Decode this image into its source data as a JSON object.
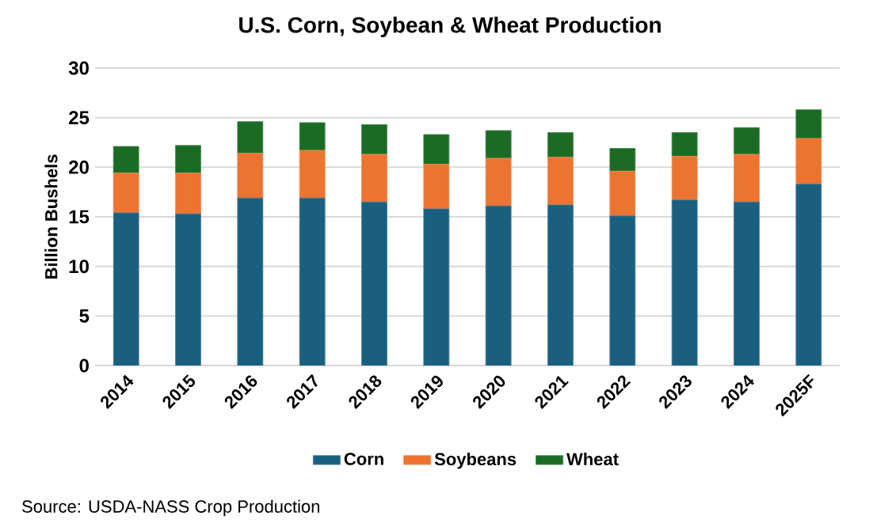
{
  "chart_data": {
    "type": "bar",
    "title": "U.S. Corn, Soybean & Wheat Production",
    "ylabel": "Billion Bushels",
    "categories": [
      "2014",
      "2015",
      "2016",
      "2017",
      "2018",
      "2019",
      "2020",
      "2021",
      "2022",
      "2023",
      "2024",
      "2025F"
    ],
    "series": [
      {
        "name": "Corn",
        "color": "#1a5f7f",
        "values": [
          15.4,
          15.3,
          16.9,
          16.9,
          16.5,
          15.8,
          16.1,
          16.2,
          15.1,
          16.7,
          16.5,
          18.3
        ]
      },
      {
        "name": "Soybeans",
        "color": "#ed7330",
        "values": [
          4.0,
          4.1,
          4.5,
          4.8,
          4.8,
          4.5,
          4.8,
          4.8,
          4.5,
          4.4,
          4.8,
          4.6
        ]
      },
      {
        "name": "Wheat",
        "color": "#1b6b24",
        "values": [
          2.7,
          2.8,
          3.2,
          2.8,
          3.0,
          3.0,
          2.8,
          2.5,
          2.3,
          2.4,
          2.7,
          2.9
        ]
      }
    ],
    "stacked": true,
    "ylim": [
      0,
      30
    ],
    "yticks": [
      0,
      5,
      10,
      15,
      20,
      25,
      30
    ],
    "grid": "y",
    "legend": "bottom",
    "annotations": [
      "Source: USDA-NASS Crop Production"
    ]
  }
}
